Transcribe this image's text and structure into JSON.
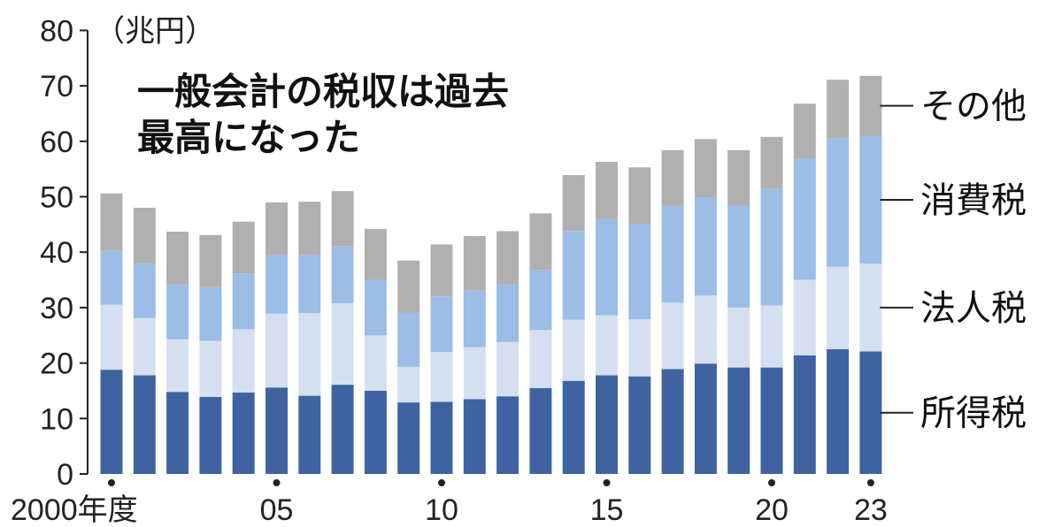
{
  "chart_data": {
    "type": "bar",
    "stacked": true,
    "title_lines": [
      "一般会計の税収は過去",
      "最高になった"
    ],
    "unit_label": "（兆円）",
    "x": [
      2000,
      2001,
      2002,
      2003,
      2004,
      2005,
      2006,
      2007,
      2008,
      2009,
      2010,
      2011,
      2012,
      2013,
      2014,
      2015,
      2016,
      2017,
      2018,
      2019,
      2020,
      2021,
      2022,
      2023
    ],
    "x_tick_labels": [
      {
        "x": 2000,
        "label": "2000年度"
      },
      {
        "x": 2005,
        "label": "05"
      },
      {
        "x": 2010,
        "label": "10"
      },
      {
        "x": 2015,
        "label": "15"
      },
      {
        "x": 2020,
        "label": "20"
      },
      {
        "x": 2023,
        "label": "23"
      }
    ],
    "y_ticks": [
      0,
      10,
      20,
      30,
      40,
      50,
      60,
      70,
      80
    ],
    "ylim": [
      0,
      80
    ],
    "grid": false,
    "legend_placement": "right, beside each stacked band",
    "series": [
      {
        "name": "所得税",
        "color": "#3f63a0",
        "values": [
          18.8,
          17.8,
          14.8,
          13.9,
          14.7,
          15.6,
          14.1,
          16.1,
          15.0,
          12.9,
          13.0,
          13.5,
          14.0,
          15.5,
          16.8,
          17.8,
          17.6,
          18.9,
          19.9,
          19.2,
          19.2,
          21.4,
          22.5,
          22.1
        ]
      },
      {
        "name": "法人税",
        "color": "#d4dff0",
        "values": [
          11.7,
          10.3,
          9.5,
          10.1,
          11.4,
          13.3,
          14.9,
          14.7,
          10.0,
          6.4,
          9.0,
          9.4,
          9.8,
          10.5,
          11.0,
          10.8,
          10.3,
          12.0,
          12.3,
          10.8,
          11.2,
          13.6,
          14.9,
          15.8
        ]
      },
      {
        "name": "消費税",
        "color": "#9bbde6",
        "values": [
          9.8,
          9.8,
          9.8,
          9.7,
          10.0,
          10.6,
          10.5,
          10.3,
          10.0,
          9.8,
          10.0,
          10.2,
          10.4,
          10.8,
          16.0,
          17.4,
          17.2,
          17.5,
          17.7,
          18.4,
          21.0,
          21.9,
          23.1,
          23.1
        ]
      },
      {
        "name": "その他",
        "color": "#b0b0b0",
        "values": [
          10.3,
          10.1,
          9.6,
          9.4,
          9.4,
          9.5,
          9.6,
          9.9,
          9.2,
          9.4,
          9.4,
          9.8,
          9.6,
          10.2,
          10.1,
          10.3,
          10.2,
          10.0,
          10.5,
          10.0,
          9.4,
          9.9,
          10.6,
          10.8
        ]
      }
    ]
  }
}
